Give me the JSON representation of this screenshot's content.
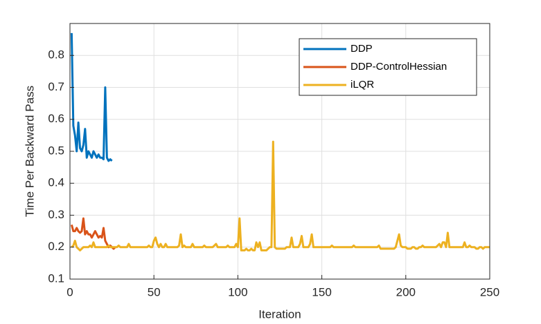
{
  "chart_data": {
    "type": "line",
    "x_label": "Iteration",
    "y_label": "Time Per Backward Pass",
    "xlim": [
      0,
      250
    ],
    "xticks": [
      0,
      50,
      100,
      150,
      200,
      250
    ],
    "ylim": [
      0.1,
      0.9
    ],
    "yticks": [
      0.1,
      0.2,
      0.3,
      0.4,
      0.5,
      0.6,
      0.7,
      0.8
    ],
    "grid": true,
    "legend_location": "northeast",
    "series": [
      {
        "name": "DDP",
        "color": "#0072BD",
        "x": [
          1,
          2,
          3,
          4,
          5,
          6,
          7,
          8,
          9,
          10,
          11,
          12,
          13,
          14,
          15,
          16,
          17,
          18,
          19,
          20,
          21,
          22,
          23,
          24,
          25
        ],
        "values": [
          0.87,
          0.58,
          0.55,
          0.5,
          0.59,
          0.51,
          0.5,
          0.52,
          0.57,
          0.48,
          0.5,
          0.49,
          0.48,
          0.5,
          0.49,
          0.48,
          0.49,
          0.48,
          0.48,
          0.475,
          0.7,
          0.48,
          0.47,
          0.475,
          0.47
        ]
      },
      {
        "name": "DDP-ControlHessian",
        "color": "#D95319",
        "x": [
          1,
          2,
          3,
          4,
          5,
          6,
          7,
          8,
          9,
          10,
          11,
          12,
          13,
          14,
          15,
          16,
          17,
          18,
          19,
          20,
          21,
          22,
          23,
          24,
          25,
          26,
          27
        ],
        "values": [
          0.27,
          0.25,
          0.25,
          0.26,
          0.25,
          0.245,
          0.25,
          0.29,
          0.24,
          0.25,
          0.24,
          0.24,
          0.23,
          0.24,
          0.25,
          0.24,
          0.23,
          0.235,
          0.23,
          0.26,
          0.22,
          0.21,
          0.2,
          0.205,
          0.2,
          0.195,
          0.2
        ]
      },
      {
        "name": "iLQR",
        "color": "#EDB120",
        "x": [
          1,
          2,
          3,
          4,
          5,
          6,
          7,
          8,
          9,
          10,
          11,
          12,
          13,
          14,
          15,
          16,
          17,
          18,
          19,
          20,
          21,
          22,
          23,
          24,
          25,
          26,
          27,
          28,
          29,
          30,
          31,
          32,
          33,
          34,
          35,
          36,
          37,
          38,
          39,
          40,
          41,
          42,
          43,
          44,
          45,
          46,
          47,
          48,
          49,
          50,
          51,
          52,
          53,
          54,
          55,
          56,
          57,
          58,
          59,
          60,
          61,
          62,
          63,
          64,
          65,
          66,
          67,
          68,
          69,
          70,
          71,
          72,
          73,
          74,
          75,
          76,
          77,
          78,
          79,
          80,
          81,
          82,
          83,
          84,
          85,
          86,
          87,
          88,
          89,
          90,
          91,
          92,
          93,
          94,
          95,
          96,
          97,
          98,
          99,
          100,
          101,
          102,
          103,
          104,
          105,
          106,
          107,
          108,
          109,
          110,
          111,
          112,
          113,
          114,
          115,
          116,
          117,
          118,
          119,
          120,
          121,
          122,
          123,
          124,
          125,
          126,
          127,
          128,
          129,
          130,
          131,
          132,
          133,
          134,
          135,
          136,
          137,
          138,
          139,
          140,
          141,
          142,
          143,
          144,
          145,
          146,
          147,
          148,
          149,
          150,
          151,
          152,
          153,
          154,
          155,
          156,
          157,
          158,
          159,
          160,
          161,
          162,
          163,
          164,
          165,
          166,
          167,
          168,
          169,
          170,
          171,
          172,
          173,
          174,
          175,
          176,
          177,
          178,
          179,
          180,
          181,
          182,
          183,
          184,
          185,
          186,
          187,
          188,
          189,
          190,
          191,
          192,
          193,
          194,
          195,
          196,
          197,
          198,
          199,
          200,
          201,
          202,
          203,
          204,
          205,
          206,
          207,
          208,
          209,
          210,
          211,
          212,
          213,
          214,
          215,
          216,
          217,
          218,
          219,
          220,
          221,
          222,
          223,
          224,
          225,
          226,
          227,
          228,
          229,
          230,
          231,
          232,
          233,
          234,
          235,
          236,
          237,
          238,
          239,
          240,
          241,
          242,
          243,
          244,
          245,
          246,
          247,
          248,
          249,
          250
        ],
        "values": [
          0.2,
          0.205,
          0.22,
          0.2,
          0.195,
          0.19,
          0.195,
          0.2,
          0.2,
          0.2,
          0.2,
          0.205,
          0.2,
          0.215,
          0.2,
          0.2,
          0.2,
          0.2,
          0.2,
          0.2,
          0.2,
          0.2,
          0.205,
          0.2,
          0.2,
          0.2,
          0.2,
          0.2,
          0.205,
          0.2,
          0.2,
          0.2,
          0.2,
          0.2,
          0.21,
          0.2,
          0.2,
          0.2,
          0.2,
          0.2,
          0.2,
          0.2,
          0.2,
          0.2,
          0.2,
          0.2,
          0.205,
          0.2,
          0.2,
          0.22,
          0.23,
          0.21,
          0.2,
          0.21,
          0.2,
          0.2,
          0.21,
          0.2,
          0.2,
          0.2,
          0.2,
          0.2,
          0.2,
          0.2,
          0.205,
          0.24,
          0.2,
          0.205,
          0.2,
          0.2,
          0.2,
          0.2,
          0.21,
          0.2,
          0.2,
          0.2,
          0.2,
          0.2,
          0.2,
          0.205,
          0.2,
          0.2,
          0.2,
          0.2,
          0.2,
          0.205,
          0.21,
          0.2,
          0.2,
          0.2,
          0.2,
          0.2,
          0.2,
          0.205,
          0.2,
          0.2,
          0.2,
          0.2,
          0.21,
          0.2,
          0.29,
          0.19,
          0.19,
          0.19,
          0.195,
          0.19,
          0.19,
          0.195,
          0.19,
          0.19,
          0.215,
          0.2,
          0.215,
          0.19,
          0.19,
          0.19,
          0.19,
          0.195,
          0.2,
          0.2,
          0.53,
          0.2,
          0.195,
          0.195,
          0.195,
          0.195,
          0.195,
          0.195,
          0.2,
          0.2,
          0.2,
          0.23,
          0.2,
          0.2,
          0.2,
          0.2,
          0.21,
          0.235,
          0.2,
          0.2,
          0.2,
          0.2,
          0.21,
          0.24,
          0.2,
          0.2,
          0.2,
          0.2,
          0.2,
          0.2,
          0.2,
          0.2,
          0.2,
          0.2,
          0.2,
          0.205,
          0.2,
          0.2,
          0.2,
          0.2,
          0.2,
          0.2,
          0.2,
          0.2,
          0.2,
          0.2,
          0.2,
          0.2,
          0.205,
          0.2,
          0.2,
          0.2,
          0.2,
          0.2,
          0.2,
          0.2,
          0.2,
          0.2,
          0.2,
          0.2,
          0.2,
          0.2,
          0.2,
          0.205,
          0.195,
          0.195,
          0.195,
          0.195,
          0.195,
          0.195,
          0.195,
          0.195,
          0.195,
          0.2,
          0.22,
          0.24,
          0.205,
          0.2,
          0.2,
          0.2,
          0.195,
          0.195,
          0.195,
          0.2,
          0.2,
          0.195,
          0.195,
          0.2,
          0.2,
          0.205,
          0.2,
          0.2,
          0.2,
          0.2,
          0.2,
          0.2,
          0.2,
          0.2,
          0.205,
          0.21,
          0.2,
          0.215,
          0.215,
          0.2,
          0.245,
          0.2,
          0.2,
          0.2,
          0.2,
          0.2,
          0.2,
          0.2,
          0.2,
          0.2,
          0.215,
          0.2,
          0.2,
          0.205,
          0.2,
          0.2,
          0.2,
          0.195,
          0.195,
          0.2,
          0.2,
          0.195,
          0.2,
          0.2,
          0.2,
          0.2
        ]
      }
    ]
  }
}
